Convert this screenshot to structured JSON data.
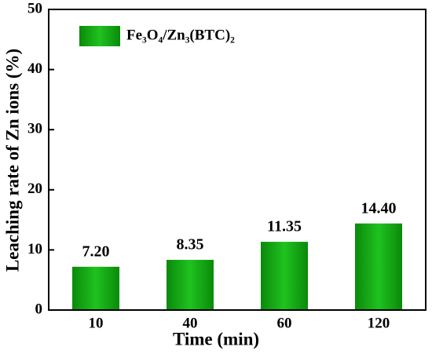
{
  "chart_data": {
    "type": "bar",
    "x_label": "Time (min)",
    "y_label": "Leaching rate of Zn ions (%)",
    "categories": [
      "10",
      "40",
      "60",
      "120"
    ],
    "series": [
      {
        "name": "Fe₃O₄/Zn₃(BTC)₂",
        "color": "#1fc21f",
        "values": [
          7.2,
          8.35,
          11.35,
          14.4
        ],
        "value_labels": [
          "7.20",
          "8.35",
          "11.35",
          "14.40"
        ]
      }
    ],
    "ylim": [
      0,
      50
    ],
    "yticks": [
      0,
      10,
      20,
      30,
      40,
      50
    ],
    "legend": "upper left"
  }
}
